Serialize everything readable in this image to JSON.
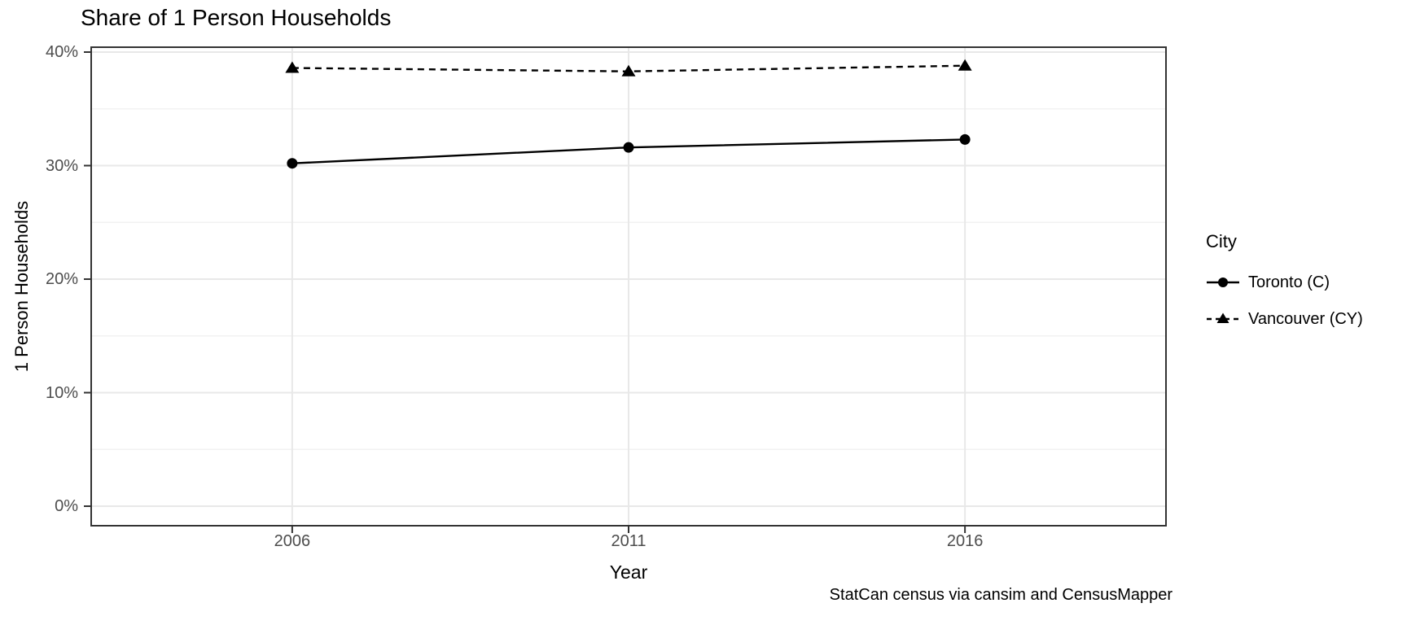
{
  "chart_data": {
    "type": "line",
    "title": "Share of 1 Person Households",
    "xlabel": "Year",
    "ylabel": "1 Person Households",
    "caption": "StatCan census via cansim and CensusMapper",
    "legend_title": "City",
    "legend_position": "right",
    "categories": [
      "2006",
      "2011",
      "2016"
    ],
    "series": [
      {
        "name": "Toronto (C)",
        "values": [
          30.2,
          31.6,
          32.3
        ],
        "line": "solid",
        "marker": "circle",
        "color": "#000000"
      },
      {
        "name": "Vancouver (CY)",
        "values": [
          38.6,
          38.3,
          38.8
        ],
        "line": "dashed",
        "marker": "triangle",
        "color": "#000000"
      }
    ],
    "ylim": [
      0,
      40
    ],
    "y_ticks": [
      0,
      10,
      20,
      30,
      40
    ],
    "y_tick_labels": [
      "0%",
      "10%",
      "20%",
      "30%",
      "40%"
    ],
    "y_minor_ticks": [
      5,
      15,
      25,
      35
    ],
    "grid": true,
    "colors": {
      "background": "#ffffff",
      "panel_border": "#333333",
      "grid_major": "#e8e8e8",
      "grid_minor": "#f2f2f2",
      "tick_text": "#4d4d4d",
      "text": "#000000"
    }
  }
}
